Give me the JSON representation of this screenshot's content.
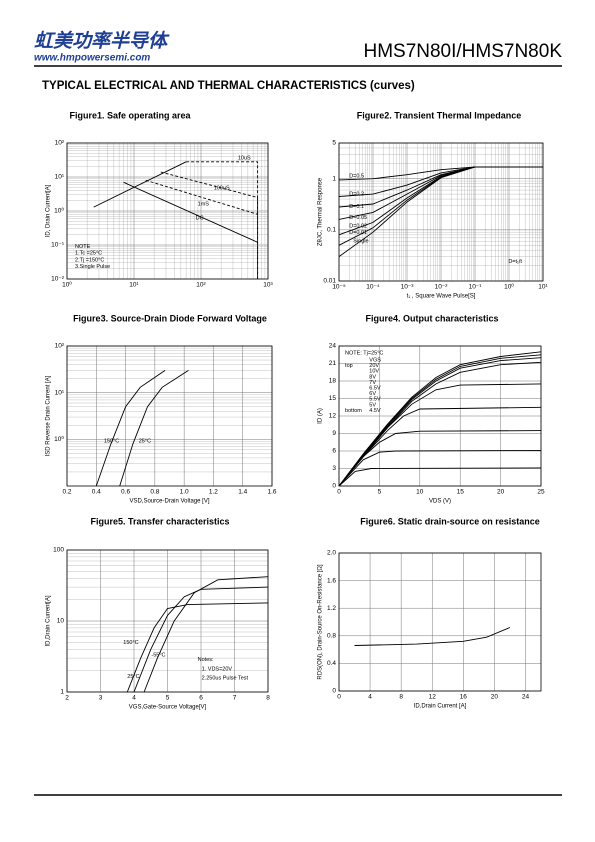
{
  "header": {
    "brand": "虹美功率半导体",
    "url": "www.hmpowersemi.com",
    "model": "HMS7N80I/HMS7N80K"
  },
  "section_title": "TYPICAL ELECTRICAL AND THERMAL CHARACTERISTICS (curves)",
  "figures": [
    {
      "title": "Figure1. Safe operating area",
      "ylabel": "ID, Drain Current[A]",
      "xlog": true,
      "ylog": true,
      "xlim": [
        1,
        1000
      ],
      "ylim": [
        0.01,
        100
      ],
      "xticks": [
        {
          "value": 1,
          "label": "10⁰"
        },
        {
          "value": 10,
          "label": "10¹"
        },
        {
          "value": 100,
          "label": "10²"
        },
        {
          "value": 1000,
          "label": "10³"
        }
      ],
      "yticks": [
        {
          "value": 0.01,
          "label": "10⁻²"
        },
        {
          "value": 0.1,
          "label": "10⁻¹"
        },
        {
          "value": 1,
          "label": "10⁰"
        },
        {
          "value": 10,
          "label": "10¹"
        },
        {
          "value": 100,
          "label": "10²"
        }
      ],
      "curves": [
        {
          "x": [
            2.5,
            60
          ],
          "y": [
            1.3,
            28
          ]
        },
        {
          "name": "10uS",
          "x": [
            60,
            700,
            700
          ],
          "y": [
            28,
            28,
            0.01
          ],
          "dash": true
        },
        {
          "name": "100uS",
          "x": [
            25,
            700,
            700
          ],
          "y": [
            14,
            2.5,
            0.01
          ],
          "dash": true
        },
        {
          "name": "1mS",
          "x": [
            15,
            700
          ],
          "y": [
            8,
            0.8
          ],
          "dash": true
        },
        {
          "name": "DC",
          "x": [
            7,
            700
          ],
          "y": [
            7,
            0.12
          ]
        }
      ],
      "annotations": [
        "NOTE",
        "1.Tc =25°C",
        "2.Tj =150°C",
        "3.Single Pulse"
      ]
    },
    {
      "title": "Figure2. Transient Thermal Impedance",
      "ylabel": "ZθJC, Thermal Response",
      "xlabel": "t₁ , Square Wave Pulse[S]",
      "xlog": true,
      "ylog": true,
      "xlim": [
        1e-05,
        10
      ],
      "ylim": [
        0.01,
        5
      ],
      "xticks": [
        {
          "value": 1e-05,
          "label": "10⁻⁵"
        },
        {
          "value": 0.0001,
          "label": "10⁻⁴"
        },
        {
          "value": 0.001,
          "label": "10⁻³"
        },
        {
          "value": 0.01,
          "label": "10⁻²"
        },
        {
          "value": 0.1,
          "label": "10⁻¹"
        },
        {
          "value": 1,
          "label": "10⁰"
        },
        {
          "value": 10,
          "label": "10¹"
        }
      ],
      "yticks": [
        0.01,
        0.1,
        1,
        5
      ],
      "curves": [
        {
          "name": "D=0.5",
          "x": [
            1e-05,
            0.0001,
            0.001,
            0.01,
            0.1,
            10
          ],
          "y": [
            0.95,
            1.0,
            1.2,
            1.5,
            1.7,
            1.7
          ]
        },
        {
          "name": "D=0.2",
          "x": [
            1e-05,
            0.0001,
            0.001,
            0.01,
            0.1,
            10
          ],
          "y": [
            0.45,
            0.5,
            0.75,
            1.3,
            1.7,
            1.7
          ]
        },
        {
          "name": "D=0.1",
          "x": [
            1e-05,
            0.0001,
            0.001,
            0.01,
            0.1,
            10
          ],
          "y": [
            0.28,
            0.32,
            0.6,
            1.2,
            1.7,
            1.7
          ]
        },
        {
          "name": "D=0.05",
          "x": [
            1e-05,
            0.0001,
            0.001,
            0.01,
            0.1,
            10
          ],
          "y": [
            0.16,
            0.22,
            0.5,
            1.15,
            1.7,
            1.7
          ]
        },
        {
          "name": "D=0.02",
          "x": [
            1e-05,
            0.0001,
            0.001,
            0.01,
            0.1,
            10
          ],
          "y": [
            0.08,
            0.14,
            0.42,
            1.1,
            1.7,
            1.7
          ]
        },
        {
          "name": "D=0.01",
          "x": [
            1e-05,
            0.0001,
            0.001,
            0.01,
            0.1,
            10
          ],
          "y": [
            0.05,
            0.11,
            0.38,
            1.08,
            1.7,
            1.7
          ]
        },
        {
          "name": "Single",
          "x": [
            1e-05,
            0.0001,
            0.001,
            0.01,
            0.1,
            10
          ],
          "y": [
            0.03,
            0.09,
            0.35,
            1.05,
            1.7,
            1.7
          ]
        }
      ],
      "annotations": [
        "D=t₁/t"
      ]
    },
    {
      "title": "Figure3. Source-Drain Diode Forward Voltage",
      "ylabel": "ISD Reverse Drain Current [A]",
      "xlabel": "VSD,Source-Drain Voltage [V]",
      "xlog": false,
      "ylog": true,
      "xlim": [
        0.2,
        1.6
      ],
      "ylim": [
        0.1,
        100
      ],
      "xticks": [
        0.2,
        0.4,
        0.6,
        0.8,
        {
          "value": 1,
          "label": "1.0"
        },
        1.2,
        1.4,
        1.6
      ],
      "yticks": [
        {
          "value": 1,
          "label": "10⁰"
        },
        {
          "value": 10,
          "label": "10¹"
        },
        {
          "value": 100,
          "label": "10²"
        }
      ],
      "curves": [
        {
          "name": "150°C",
          "x": [
            0.4,
            0.5,
            0.6,
            0.7,
            0.87
          ],
          "y": [
            0.1,
            0.8,
            5,
            13,
            30
          ]
        },
        {
          "name": "25°C",
          "x": [
            0.56,
            0.65,
            0.75,
            0.85,
            1.03
          ],
          "y": [
            0.1,
            0.8,
            5,
            13,
            30
          ]
        }
      ],
      "annotations": []
    },
    {
      "title": "Figure4. Output characteristics",
      "ylabel": "ID (A)",
      "xlabel": "VDS (V)",
      "xlog": false,
      "ylog": false,
      "xlim": [
        0,
        25
      ],
      "ylim": [
        0,
        24
      ],
      "xticks": [
        0,
        5,
        10,
        15,
        20,
        25
      ],
      "yticks": [
        0,
        3,
        6,
        9,
        12,
        15,
        18,
        21,
        24
      ],
      "curves": [
        {
          "x": [
            0,
            3,
            6,
            9,
            12,
            15,
            20,
            25
          ],
          "y": [
            0,
            5.5,
            10.6,
            15.2,
            18.6,
            20.8,
            22.2,
            23
          ]
        },
        {
          "x": [
            0,
            3,
            6,
            9,
            12,
            15,
            20,
            25
          ],
          "y": [
            0,
            5.4,
            10.4,
            15,
            18.3,
            20.5,
            21.9,
            22.5
          ]
        },
        {
          "x": [
            0,
            3,
            6,
            9,
            12,
            15,
            20,
            25
          ],
          "y": [
            0,
            5.3,
            10.2,
            14.8,
            18,
            20.2,
            21.5,
            22
          ]
        },
        {
          "x": [
            0,
            3,
            6,
            9,
            12,
            15,
            20,
            25
          ],
          "y": [
            0,
            5.2,
            10,
            14.5,
            17.5,
            19.5,
            20.8,
            21.2
          ]
        },
        {
          "x": [
            0,
            3,
            6,
            9,
            12,
            15,
            25
          ],
          "y": [
            0,
            5,
            10,
            14,
            16.5,
            17.3,
            17.5
          ]
        },
        {
          "x": [
            0,
            3,
            6,
            8,
            10,
            25
          ],
          "y": [
            0,
            5,
            9.5,
            12,
            13.2,
            13.5
          ]
        },
        {
          "x": [
            0,
            3,
            5,
            7,
            10,
            25
          ],
          "y": [
            0,
            5,
            7.5,
            9,
            9.4,
            9.5
          ]
        },
        {
          "x": [
            0,
            3,
            5,
            7,
            25
          ],
          "y": [
            0,
            4.5,
            5.8,
            6,
            6.1
          ]
        },
        {
          "x": [
            0,
            2,
            4,
            25
          ],
          "y": [
            0,
            2.5,
            3,
            3.1
          ]
        }
      ],
      "annotations": [
        "NOTE:  Tj=25°C",
        "VGS",
        "top",
        "20V",
        "10V",
        "8V",
        "7V",
        "6.5V",
        "6V",
        "5.5V",
        "5V",
        "bottom",
        "4.5V"
      ]
    },
    {
      "title": "Figure5. Transfer characteristics",
      "ylabel": "ID,Drain Current[A]",
      "xlabel": "VGS,Gate-Source Voltage[V]",
      "xlog": false,
      "ylog": true,
      "xlim": [
        2,
        8
      ],
      "ylim": [
        1,
        100
      ],
      "xticks": [
        2,
        3,
        4,
        5,
        6,
        7,
        8
      ],
      "yticks": [
        1,
        10,
        100
      ],
      "curves": [
        {
          "name": "150°C",
          "x": [
            3.8,
            4.2,
            4.6,
            5,
            5.6,
            8
          ],
          "y": [
            1,
            3,
            8,
            15,
            17,
            18
          ]
        },
        {
          "name": "25°C",
          "x": [
            4,
            4.5,
            5,
            5.5,
            6,
            8
          ],
          "y": [
            1,
            4,
            12,
            22,
            28,
            30
          ]
        },
        {
          "name": "-55°C",
          "x": [
            4.3,
            4.7,
            5.2,
            5.8,
            6.5,
            8
          ],
          "y": [
            1,
            3,
            10,
            25,
            38,
            42
          ]
        }
      ],
      "annotations": [
        "Notes:",
        "1. VDS=20V",
        "2.250us Pulse Test"
      ]
    },
    {
      "title": "Figure6. Static drain-source on resistance",
      "ylabel": "RDS(ON), Drain-Source On-Resistance [Ω]",
      "xlabel": "ID,Drain Current [A]",
      "xlog": false,
      "ylog": false,
      "xlim": [
        0,
        26
      ],
      "ylim": [
        0,
        2
      ],
      "xticks": [
        0,
        4,
        8,
        12,
        16,
        20,
        24
      ],
      "yticks": [
        0,
        0.4,
        0.8,
        1.2,
        1.6,
        {
          "value": 2,
          "label": "2.0"
        }
      ],
      "curves": [
        {
          "x": [
            2,
            10,
            16,
            19,
            22
          ],
          "y": [
            0.66,
            0.68,
            0.72,
            0.78,
            0.92
          ]
        }
      ],
      "annotations": []
    }
  ]
}
